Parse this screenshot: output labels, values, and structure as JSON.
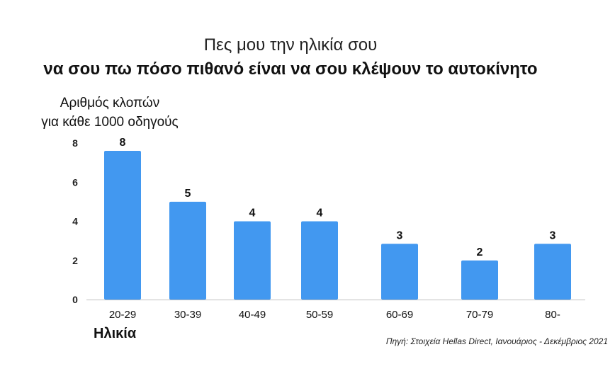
{
  "header": {
    "title": "Πες μου την ηλικία σου",
    "subtitle": "να σου πω πόσο πιθανό είναι να σου κλέψουν το αυτοκίνητο"
  },
  "footer": {
    "source": "Πηγή: Στοιχεία Hellas Direct, Ιανουάριος - Δεκέμβριος 2021"
  },
  "chart_data": {
    "type": "bar",
    "title": "Πες μου την ηλικία σου",
    "subtitle": "να σου πω πόσο πιθανό είναι να σου κλέψουν το αυτοκίνητο",
    "ylabel": "Αριθμός κλοπών για κάθε 1000 οδηγούς",
    "ylabel_lines": [
      "Αριθμός κλοπών",
      "για κάθε 1000 οδηγούς"
    ],
    "xlabel": "Ηλικία",
    "categories": [
      "20-29",
      "30-39",
      "40-49",
      "50-59",
      "60-69",
      "70-79",
      "80-"
    ],
    "values": [
      7.6,
      5.0,
      4.0,
      4.0,
      2.85,
      2.0,
      2.85
    ],
    "data_labels": [
      "8",
      "5",
      "4",
      "4",
      "3",
      "2",
      "3"
    ],
    "yticks": [
      "0",
      "2",
      "4",
      "6",
      "8"
    ],
    "ylim": [
      0,
      8
    ],
    "grid": false,
    "legend": "none",
    "bar_color": "#4298f0",
    "baseline_color": "#bdbdbd"
  }
}
